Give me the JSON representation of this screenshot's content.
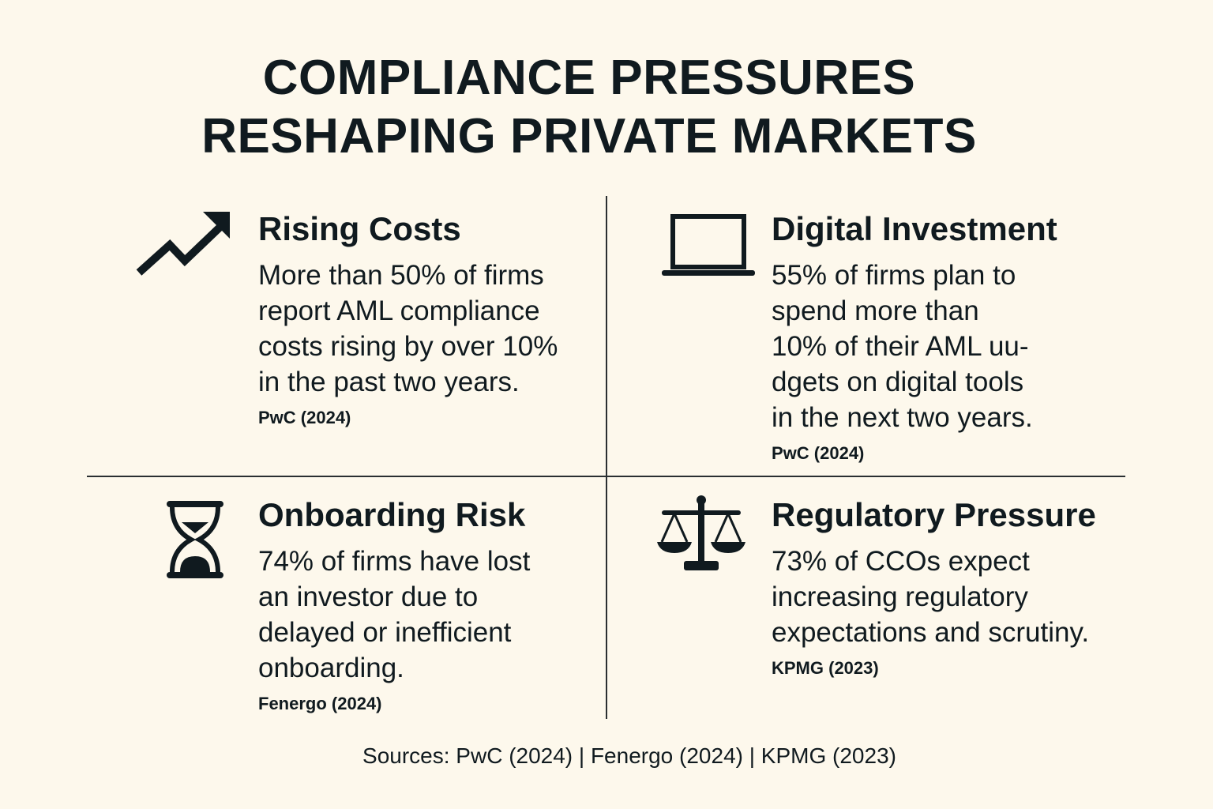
{
  "title": {
    "line1": "COMPLIANCE PRESSURES",
    "line2": "RESHAPING PRIVATE MARKETS"
  },
  "cards": [
    {
      "icon": "trending-up-icon",
      "heading": "Rising Costs",
      "lines": [
        "More than 50% of firms",
        "report AML compliance",
        "costs rising by over 10%",
        "in the past two years."
      ],
      "source": "PwC (2024)"
    },
    {
      "icon": "laptop-icon",
      "heading": "Digital Investment",
      "lines": [
        "55% of firms plan to",
        "spend more than",
        "10% of their AML uu-",
        "dgets on digital tools",
        "in the next two years."
      ],
      "source": "PwC (2024)"
    },
    {
      "icon": "hourglass-icon",
      "heading": "Onboarding Risk",
      "lines": [
        "74% of firms have lost",
        "an investor due to",
        "delayed or inefficient",
        "onboarding."
      ],
      "source": "Fenergo (2024)"
    },
    {
      "icon": "scales-icon",
      "heading": "Regulatory Pressure",
      "lines": [
        "73% of CCOs expect",
        "increasing regulatory",
        "expectations and scrutiny."
      ],
      "source": "KPMG (2023)"
    }
  ],
  "footer": "Sources: PwC (2024) | Fenergo (2024) | KPMG (2023)",
  "colors": {
    "background": "#fdf8ec",
    "text": "#101a1f"
  }
}
